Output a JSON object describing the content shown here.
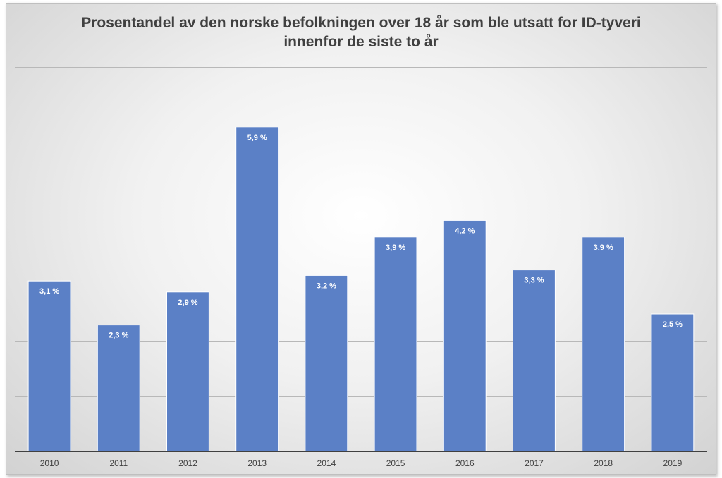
{
  "chart_data": {
    "type": "bar",
    "title": "Prosentandel av den norske befolkningen over 18 år som ble utsatt for ID-tyveri innenfor de siste to år",
    "categories": [
      "2010",
      "2011",
      "2012",
      "2013",
      "2014",
      "2015",
      "2016",
      "2017",
      "2018",
      "2019"
    ],
    "values": [
      3.1,
      2.3,
      2.9,
      5.9,
      3.2,
      3.9,
      4.2,
      3.3,
      3.9,
      2.5
    ],
    "data_labels": [
      "3,1 %",
      "2,3 %",
      "2,9 %",
      "5,9 %",
      "3,2 %",
      "3,9 %",
      "4,2 %",
      "3,3 %",
      "3,9 %",
      "2,5 %"
    ],
    "xlabel": "",
    "ylabel": "",
    "ylim": [
      0,
      7
    ],
    "y_tick_labels_shown": false,
    "grid": true,
    "colors": {
      "bar": "#5b80c6",
      "bar_edge": "#ffffff",
      "grid": "#b8b8b8",
      "axis": "#404040",
      "title": "#404040",
      "data_label": "#ffffff",
      "tick_label": "#404040"
    }
  }
}
